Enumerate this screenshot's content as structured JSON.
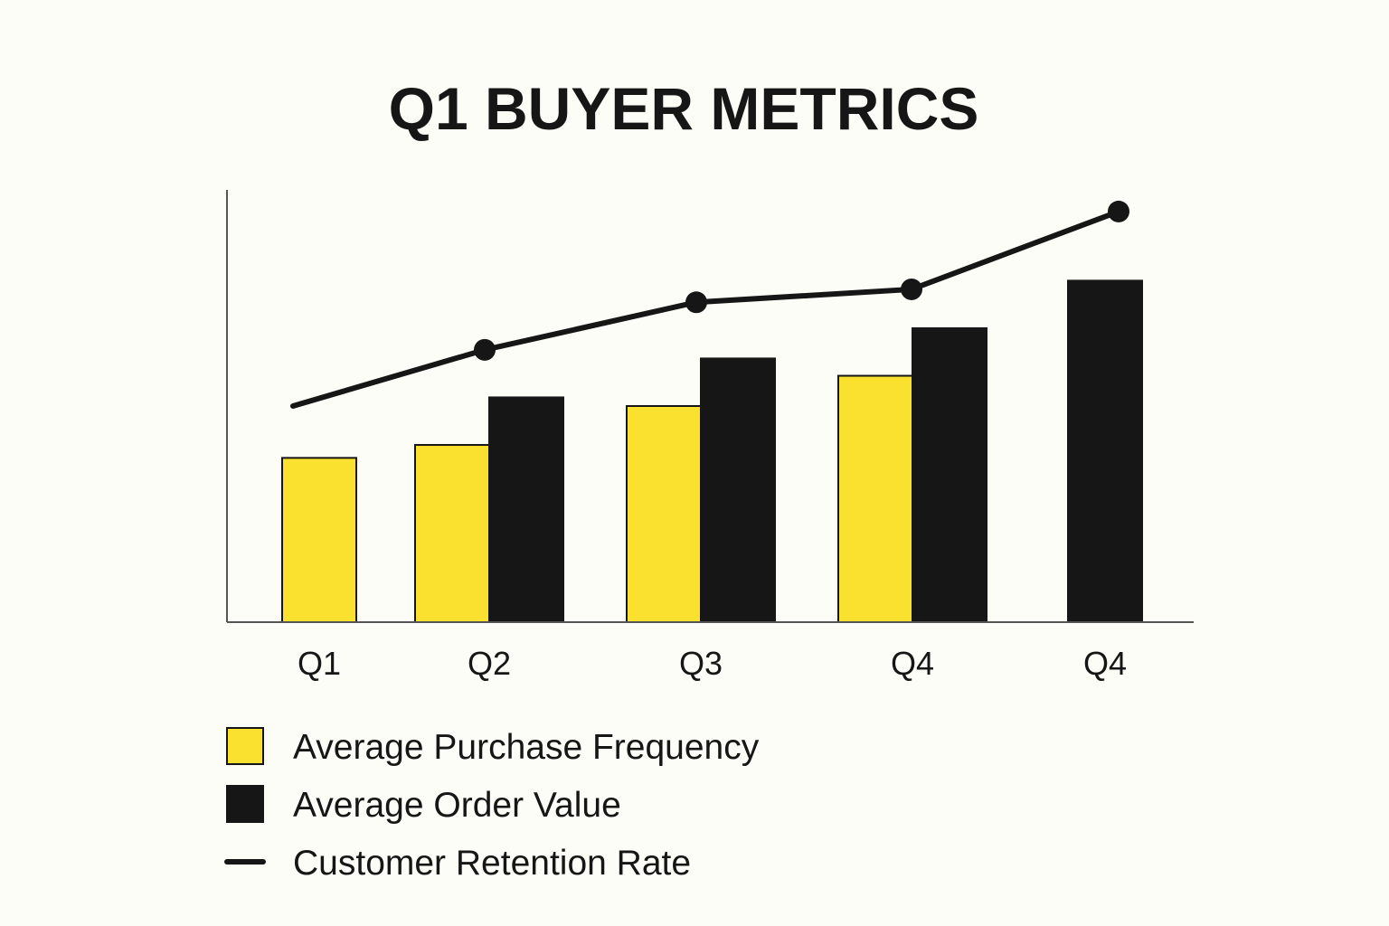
{
  "chart_data": {
    "type": "bar",
    "title": "Q1 BUYER METRICS",
    "xlabel": "",
    "ylabel": "",
    "categories": [
      "Q1",
      "Q2",
      "Q3",
      "Q4",
      "Q4"
    ],
    "ylim": [
      0,
      100
    ],
    "grid": false,
    "legend_position": "bottom-left",
    "series": [
      {
        "name": "Average Purchase Frequency",
        "kind": "bar",
        "color": "#fbe12f",
        "values": [
          38,
          41,
          50,
          57,
          null
        ]
      },
      {
        "name": "Average Order Value",
        "kind": "bar",
        "color": "#161616",
        "values": [
          null,
          52,
          61,
          68,
          79
        ]
      },
      {
        "name": "Customer Retention Rate",
        "kind": "line",
        "color": "#161616",
        "values": [
          50,
          63,
          74,
          77,
          95
        ]
      }
    ]
  }
}
